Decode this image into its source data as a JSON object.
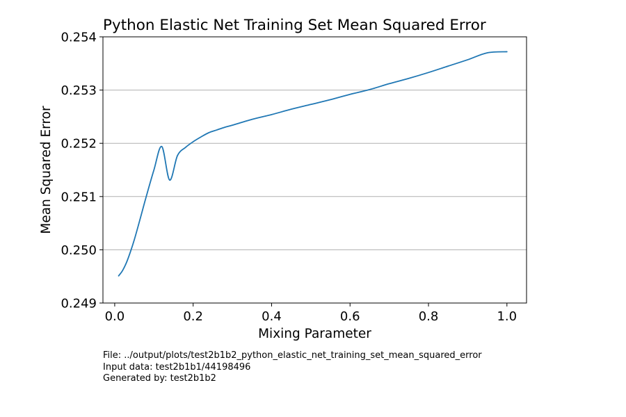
{
  "chart_data": {
    "type": "line",
    "title": "Python Elastic Net Training Set Mean Squared Error",
    "xlabel": "Mixing Parameter",
    "ylabel": "Mean Squared Error",
    "xlim": [
      -0.03,
      1.05
    ],
    "ylim": [
      0.249,
      0.254
    ],
    "xticks": [
      0.0,
      0.2,
      0.4,
      0.6,
      0.8,
      1.0
    ],
    "xtick_labels": [
      "0.0",
      "0.2",
      "0.4",
      "0.6",
      "0.8",
      "1.0"
    ],
    "yticks": [
      0.249,
      0.25,
      0.251,
      0.252,
      0.253,
      0.254
    ],
    "ytick_labels": [
      "0.249",
      "0.250",
      "0.251",
      "0.252",
      "0.253",
      "0.254"
    ],
    "grid": "horizontal",
    "color": "#1f77b4",
    "series": [
      {
        "x": [
          0.01,
          0.02,
          0.03,
          0.04,
          0.05,
          0.06,
          0.07,
          0.08,
          0.1,
          0.12,
          0.14,
          0.16,
          0.18,
          0.2,
          0.22,
          0.24,
          0.26,
          0.28,
          0.3,
          0.35,
          0.4,
          0.45,
          0.5,
          0.55,
          0.6,
          0.65,
          0.7,
          0.75,
          0.8,
          0.85,
          0.9,
          0.95,
          1.0
        ],
        "y": [
          0.24951,
          0.24961,
          0.24976,
          0.24996,
          0.25019,
          0.25045,
          0.25072,
          0.25099,
          0.2515,
          0.25194,
          0.25131,
          0.25177,
          0.25192,
          0.25203,
          0.25212,
          0.2522,
          0.25225,
          0.2523,
          0.25234,
          0.25245,
          0.25254,
          0.25264,
          0.25273,
          0.25282,
          0.25292,
          0.25301,
          0.25312,
          0.25322,
          0.25333,
          0.25345,
          0.25357,
          0.2537,
          0.25372
        ]
      }
    ]
  },
  "footer": {
    "file_line": "File: ../output/plots/test2b1b2_python_elastic_net_training_set_mean_squared_error",
    "input_line": "Input data: test2b1b1/44198496",
    "generated_line": "Generated by: test2b1b2"
  }
}
